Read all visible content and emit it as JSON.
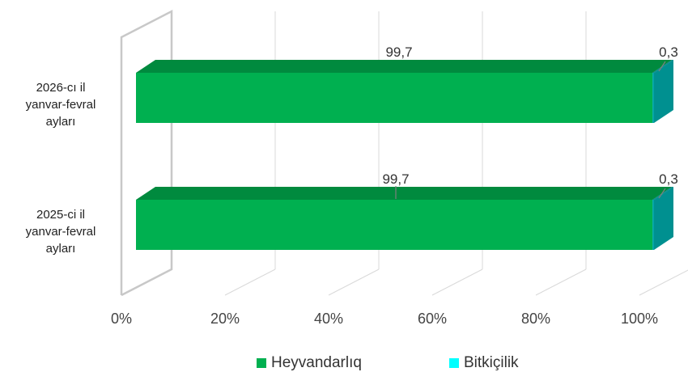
{
  "chart_data": {
    "type": "bar",
    "orientation": "horizontal",
    "stacked": "percent",
    "three_d": true,
    "categories": [
      "2026-cı il yanvar-fevral ayları",
      "2025-ci il yanvar-fevral ayları"
    ],
    "category_lines": [
      [
        "2026-cı il",
        "yanvar-fevral",
        "ayları"
      ],
      [
        "2025-ci il",
        "yanvar-fevral",
        "ayları"
      ]
    ],
    "series": [
      {
        "name": "Heyvandarlıq",
        "values": [
          99.7,
          99.7
        ],
        "value_labels": [
          "99,7",
          "99,7"
        ],
        "color": "#00B050"
      },
      {
        "name": "Bitkiçilik",
        "values": [
          0.3,
          0.3
        ],
        "value_labels": [
          "0,3",
          "0,3"
        ],
        "color": "#00A5A5"
      }
    ],
    "x_ticks": [
      "0%",
      "20%",
      "40%",
      "60%",
      "80%",
      "100%"
    ],
    "xlim": [
      0,
      100
    ],
    "grid": true,
    "legend_position": "bottom",
    "legend_swatch_colors": [
      "#00B050",
      "#00FFFF"
    ]
  }
}
